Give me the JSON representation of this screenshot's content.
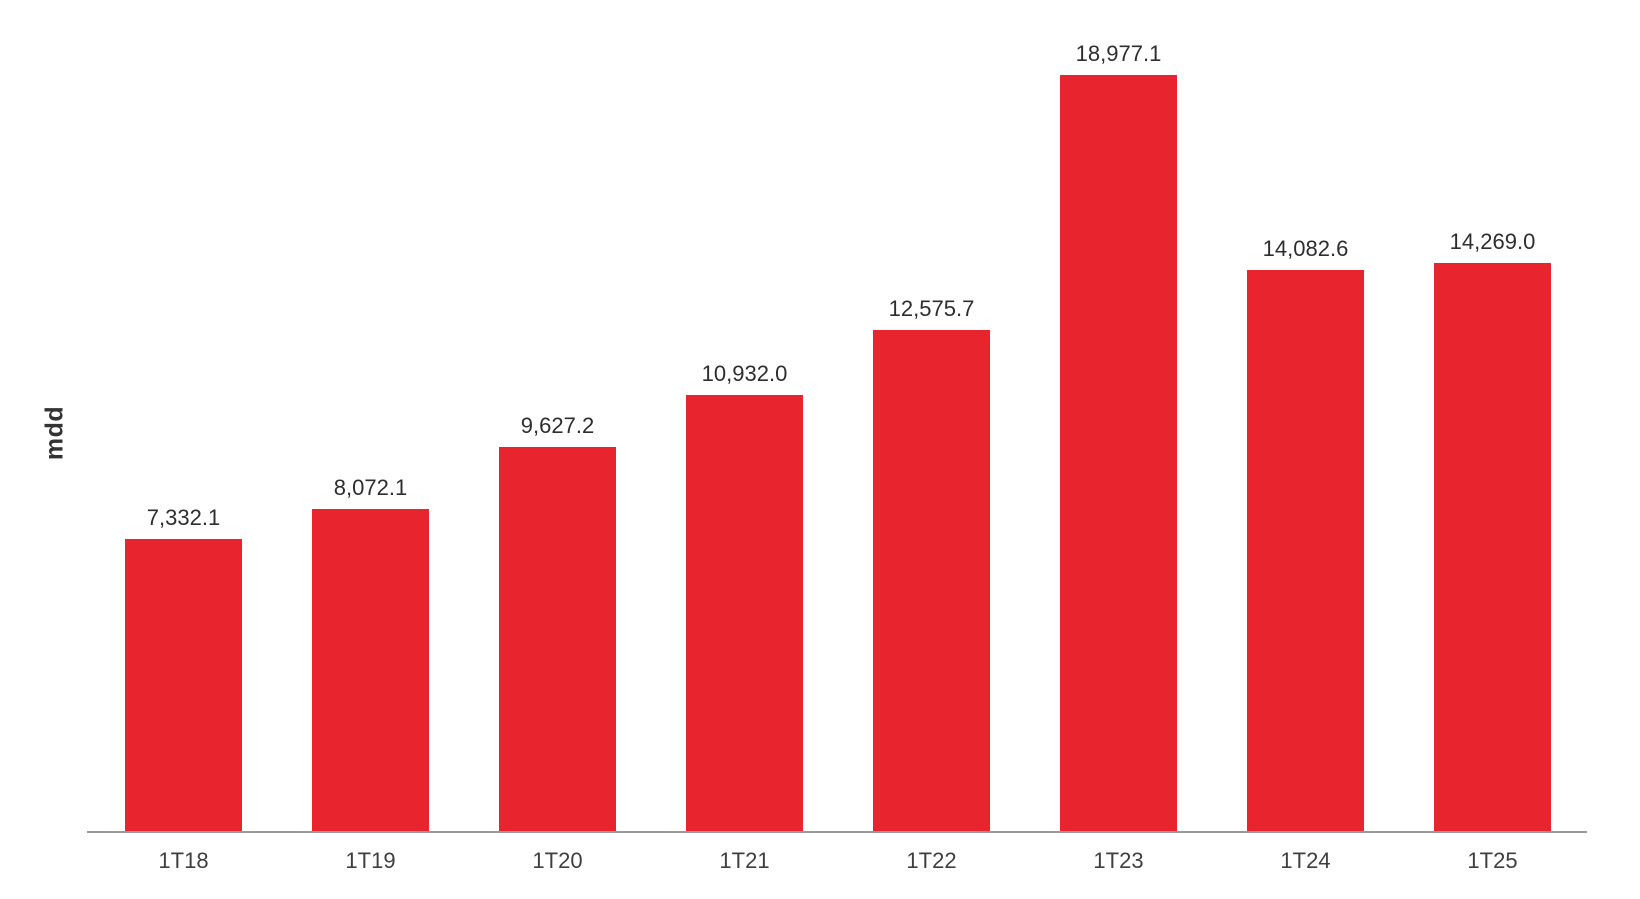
{
  "chart_data": {
    "type": "bar",
    "title": "",
    "xlabel": "",
    "ylabel": "mdd",
    "categories": [
      "1T18",
      "1T19",
      "1T20",
      "1T21",
      "1T22",
      "1T23",
      "1T24",
      "1T25"
    ],
    "values": [
      7332.1,
      8072.1,
      9627.2,
      10932.0,
      12575.7,
      18977.1,
      14082.6,
      14269.0
    ],
    "value_labels": [
      "7,332.1",
      "8,072.1",
      "9,627.2",
      "10,932.0",
      "12,575.7",
      "18,977.1",
      "14,082.6",
      "14,269.0"
    ],
    "ylim": [
      0,
      18977.1
    ],
    "grid": false,
    "legend": "none",
    "colors": {
      "bar": "#e8242f",
      "axis": "#9a9a9a",
      "value_label_text": "#2e2e2e",
      "tick_label_text": "#3f3f3f",
      "ylabel_text": "#333333",
      "background": "#ffffff"
    }
  }
}
